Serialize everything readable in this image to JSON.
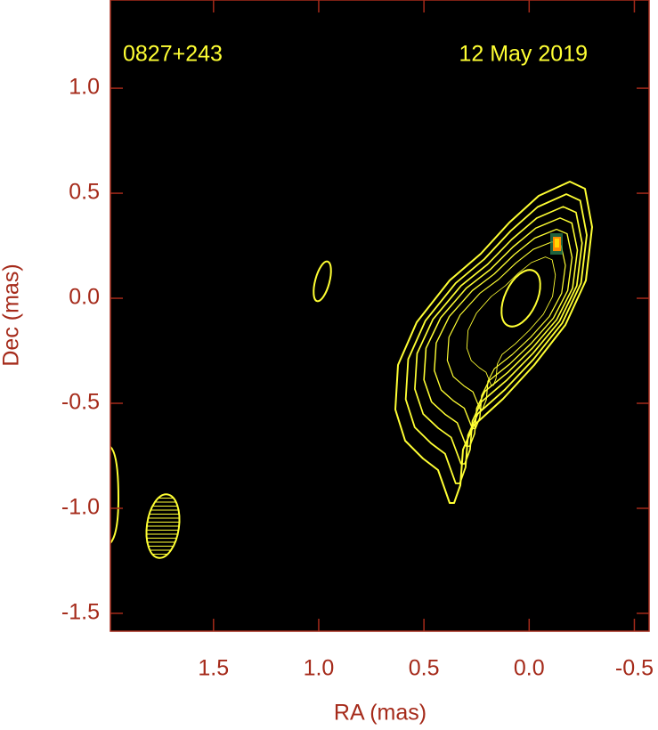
{
  "chart_data": {
    "type": "contour",
    "title": "0827+243",
    "subtitle": "12 May 2019",
    "xlabel": "RA (mas)",
    "ylabel": "Dec (mas)",
    "xlim": [
      1.99,
      -0.57
    ],
    "ylim": [
      -1.585,
      1.42
    ],
    "xticks": [
      1.5,
      {
        "value": 1,
        "label": "1.0"
      },
      0.5,
      {
        "value": 0,
        "label": "0.0"
      },
      -0.5
    ],
    "yticks": [
      {
        "value": 1,
        "label": "1.0"
      },
      0.5,
      {
        "value": 0,
        "label": "0.0"
      },
      -0.5,
      {
        "value": -1,
        "label": "-1.0"
      },
      -1.5
    ],
    "contour_color": "#ffff33",
    "axis_color": "#a52a1a"
  }
}
